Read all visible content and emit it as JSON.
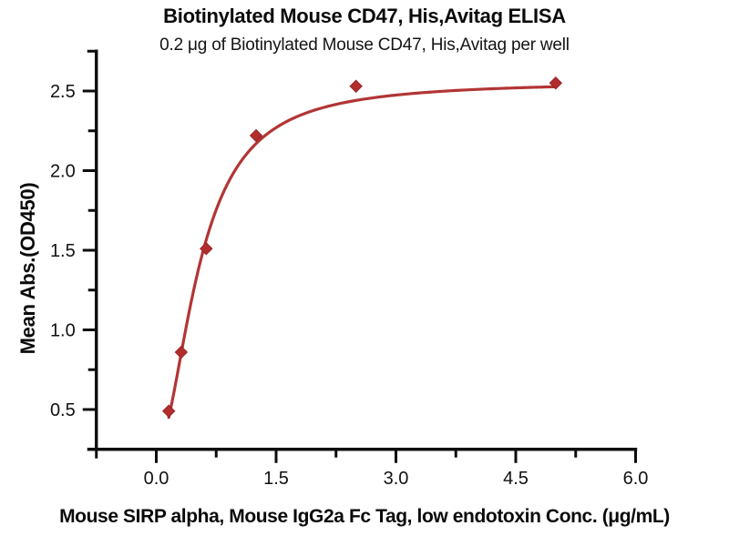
{
  "chart_data": {
    "type": "scatter",
    "title": "Biotinylated Mouse CD47, His,Avitag ELISA",
    "subtitle": "0.2 μg of Biotinylated Mouse CD47, His,Avitag per well",
    "xlabel": "Mouse SIRP alpha, Mouse IgG2a Fc Tag, low endotoxin Conc. (μg/mL)",
    "ylabel": "Mean Abs.(OD450)",
    "x": [
      0.15625,
      0.3125,
      0.625,
      1.25,
      2.5,
      5.0
    ],
    "y": [
      0.49,
      0.86,
      1.51,
      2.22,
      2.53,
      2.55
    ],
    "fit_curve": {
      "model": "4PL",
      "params": {
        "bottom": 0.25,
        "top": 2.56,
        "ec50": 0.54,
        "hill": 1.9
      },
      "x_start": 0.15625,
      "x_end": 5.0
    },
    "x_axis": {
      "lim": [
        -0.75,
        6.0
      ],
      "major_ticks": [
        0.0,
        1.5,
        3.0,
        4.5,
        6.0
      ],
      "minor_ticks": [
        0.75,
        2.25,
        3.75,
        5.25
      ],
      "tick_labels": [
        "0.0",
        "1.5",
        "3.0",
        "4.5",
        "6.0"
      ]
    },
    "y_axis": {
      "lim": [
        0.25,
        2.75
      ],
      "major_ticks": [
        0.5,
        1.0,
        1.5,
        2.0,
        2.5
      ],
      "minor_ticks": [
        0.75,
        1.25,
        1.75,
        2.25
      ],
      "tick_labels": [
        "0.5",
        "1.0",
        "1.5",
        "2.0",
        "2.5"
      ]
    },
    "grid": false,
    "legend": false,
    "colors": {
      "marker": "#b22e2e",
      "marker_edge": "#9a2424",
      "line": "#b23535",
      "axis": "#0d0d0d",
      "background": "#ffffff"
    }
  }
}
